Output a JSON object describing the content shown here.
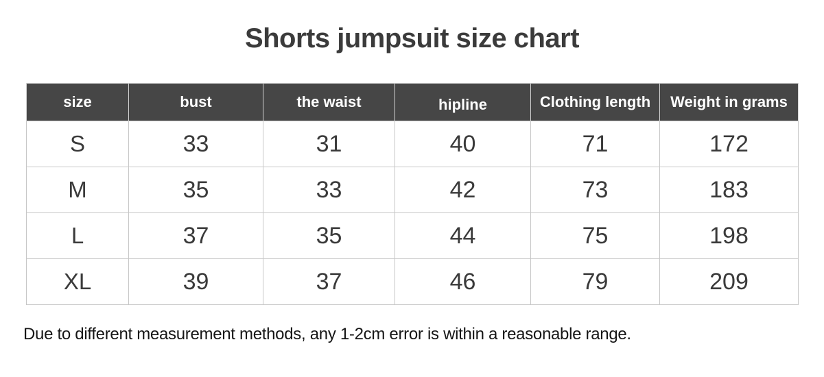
{
  "page": {
    "title": "Shorts jumpsuit size chart",
    "footnote": "Due to different measurement methods, any 1-2cm error is within a reasonable range."
  },
  "chart_data": {
    "type": "table",
    "title": "Shorts jumpsuit size chart",
    "columns": [
      "size",
      "bust",
      "the waist",
      "hipline",
      "Clothing length",
      "Weight in grams"
    ],
    "rows": [
      [
        "S",
        33,
        31,
        40,
        71,
        172
      ],
      [
        "M",
        35,
        33,
        42,
        73,
        183
      ],
      [
        "L",
        37,
        35,
        44,
        75,
        198
      ],
      [
        "XL",
        39,
        37,
        46,
        79,
        209
      ]
    ],
    "note": "Due to different measurement methods, any 1-2cm error is within a reasonable range."
  },
  "colors": {
    "page_bg": "#ffffff",
    "header_bg": "#464646",
    "header_text": "#ffffff",
    "body_text": "#3a3a3a",
    "border": "#c7c7c7",
    "title_text": "#3b3b3b",
    "note_text": "#161616"
  }
}
